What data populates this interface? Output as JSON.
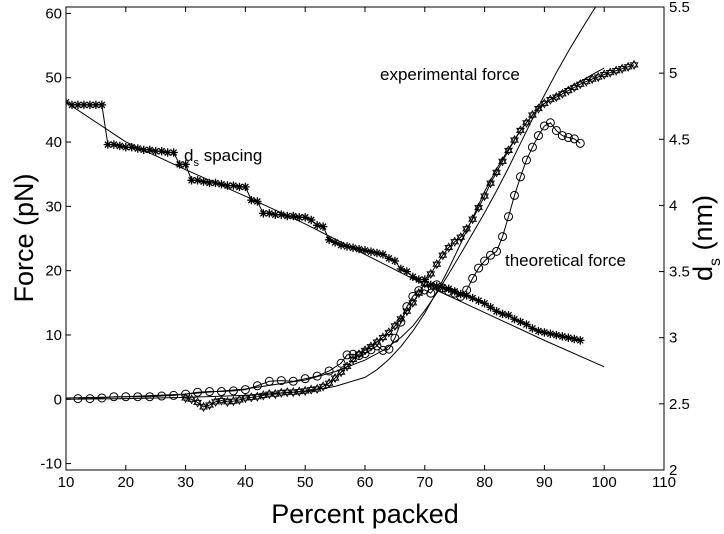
{
  "chart_data": {
    "type": "line",
    "title": "",
    "xlabel": "Percent packed",
    "ylabel": "Force (pN)",
    "y2label": "d",
    "y2label_sub": "s",
    "y2label_unit": " (nm)",
    "xlim": [
      10,
      110
    ],
    "ylim": [
      -11,
      61
    ],
    "y2lim": [
      2.0,
      5.5
    ],
    "xticks": [
      "10",
      "20",
      "30",
      "40",
      "50",
      "60",
      "70",
      "80",
      "90",
      "100",
      "110"
    ],
    "yticks": [
      "-10",
      "0",
      "10",
      "20",
      "30",
      "40",
      "50",
      "60"
    ],
    "y2ticks": [
      "2",
      "2.5",
      "3",
      "3.5",
      "4",
      "4.5",
      "5",
      "5.5"
    ],
    "grid": false,
    "colors": {
      "line": "#000000",
      "background": "#ffffff"
    },
    "annotations": [
      {
        "text": "experimental force",
        "at": [
          82,
          52
        ]
      },
      {
        "text": "theoretical force",
        "at": [
          86,
          20
        ]
      },
      {
        "text": "d",
        "sub": "s",
        "tail": " spacing",
        "at": [
          41,
          39.5
        ]
      }
    ],
    "series": [
      {
        "name": "experimental force",
        "axis": "left",
        "marker": "star-of-david",
        "x": [
          30,
          31,
          32,
          33,
          34,
          35,
          36,
          37,
          38,
          39,
          40,
          41,
          42,
          43,
          44,
          45,
          46,
          47,
          48,
          49,
          50,
          51,
          52,
          53,
          54,
          55,
          56,
          57,
          58,
          59,
          60,
          61,
          62,
          63,
          64,
          65,
          66,
          67,
          68,
          69,
          70,
          71,
          72,
          73,
          74,
          75,
          76,
          77,
          78,
          79,
          80,
          81,
          82,
          83,
          84,
          85,
          86,
          87,
          88,
          89,
          90,
          91,
          92,
          93,
          94,
          95,
          96,
          97,
          98,
          99,
          100,
          101,
          102,
          103,
          104,
          105
        ],
        "y": [
          0.2,
          0.0,
          -0.5,
          -1.2,
          -0.9,
          -0.4,
          -0.2,
          -0.4,
          -0.3,
          -0.1,
          0.2,
          0.3,
          0.4,
          0.6,
          0.8,
          0.8,
          1.0,
          1.1,
          1.1,
          1.2,
          1.3,
          1.5,
          1.6,
          2.0,
          2.5,
          3.3,
          4.2,
          5.1,
          6.2,
          7.0,
          7.6,
          8.2,
          8.9,
          9.6,
          10.4,
          11.4,
          12.5,
          13.7,
          15.0,
          16.5,
          18.0,
          19.5,
          21.0,
          22.4,
          23.6,
          24.5,
          25.2,
          26.5,
          28.0,
          29.8,
          31.6,
          33.6,
          35.3,
          37.0,
          38.7,
          40.3,
          41.8,
          43.0,
          44.2,
          45.2,
          46.0,
          46.6,
          47.0,
          47.5,
          48.0,
          48.5,
          49.0,
          49.4,
          49.8,
          50.1,
          50.5,
          50.8,
          51.1,
          51.4,
          51.7,
          52.0
        ]
      },
      {
        "name": "theoretical force",
        "axis": "left",
        "marker": "circle",
        "x": [
          12,
          14,
          16,
          18,
          20,
          22,
          24,
          26,
          28,
          30,
          32,
          34,
          36,
          38,
          40,
          42,
          44,
          46,
          48,
          50,
          52,
          54,
          56,
          57,
          58,
          59,
          60,
          61,
          62,
          63,
          64,
          65,
          66,
          67,
          68,
          69,
          70,
          71,
          72,
          73,
          74,
          75,
          76,
          77,
          78,
          79,
          80,
          81,
          82,
          83,
          84,
          85,
          86,
          87,
          88,
          89,
          90,
          91,
          92,
          93,
          94,
          95,
          96
        ],
        "y": [
          0.1,
          0.1,
          0.2,
          0.4,
          0.4,
          0.4,
          0.4,
          0.5,
          0.6,
          0.8,
          1.1,
          1.2,
          1.2,
          1.3,
          1.5,
          2.1,
          2.8,
          2.9,
          2.8,
          3.2,
          3.6,
          4.4,
          5.6,
          6.9,
          7.0,
          6.8,
          7.1,
          7.7,
          8.3,
          7.6,
          7.8,
          9.5,
          12.0,
          14.4,
          16.0,
          16.9,
          17.0,
          16.5,
          17.8,
          17.3,
          16.8,
          16.5,
          16.0,
          17.0,
          18.8,
          20.4,
          21.5,
          22.4,
          23.0,
          25.3,
          28.4,
          31.7,
          34.6,
          37.2,
          39.2,
          41.0,
          42.5,
          43.0,
          41.8,
          41.0,
          40.7,
          40.5,
          39.8
        ]
      },
      {
        "name": "experimental force fit",
        "axis": "left",
        "marker": "none",
        "x": [
          10,
          20,
          30,
          40,
          50,
          55,
          60,
          62,
          64,
          66,
          68,
          70,
          72,
          74,
          76,
          78,
          80,
          82,
          84,
          86,
          88,
          90,
          92,
          94,
          96,
          98,
          100
        ],
        "y": [
          0.0,
          0.1,
          0.3,
          0.6,
          1.2,
          2.0,
          3.4,
          4.6,
          6.2,
          8.2,
          10.6,
          13.4,
          16.7,
          20.3,
          24.2,
          28.2,
          32.3,
          35.8,
          38.9,
          41.8,
          44.2,
          46.0,
          47.3,
          48.4,
          49.4,
          50.5,
          51.5
        ]
      },
      {
        "name": "theoretical force fit",
        "axis": "left",
        "marker": "none",
        "x": [
          10,
          20,
          30,
          40,
          50,
          55,
          60,
          63,
          66,
          68,
          70,
          72,
          74,
          76,
          78,
          80,
          82,
          84,
          86,
          88,
          90,
          92,
          94,
          96,
          98,
          100
        ],
        "y": [
          0.2,
          0.4,
          0.8,
          1.6,
          3.0,
          4.3,
          6.1,
          7.6,
          9.6,
          11.4,
          13.8,
          16.5,
          19.5,
          22.6,
          25.8,
          29.0,
          32.4,
          36.0,
          39.8,
          43.6,
          47.3,
          50.8,
          54.1,
          57.2,
          60.2,
          63.0
        ]
      },
      {
        "name": "ds spacing",
        "axis": "right",
        "marker": "asterisk",
        "x": [
          10,
          11,
          12,
          13,
          14,
          15,
          16,
          17,
          18,
          19,
          20,
          21,
          22,
          23,
          24,
          25,
          26,
          27,
          28,
          29,
          30,
          31,
          32,
          33,
          34,
          35,
          36,
          37,
          38,
          39,
          40,
          41,
          42,
          43,
          44,
          45,
          46,
          47,
          48,
          49,
          50,
          51,
          52,
          53,
          54,
          55,
          56,
          57,
          58,
          59,
          60,
          61,
          62,
          63,
          64,
          65,
          66,
          67,
          68,
          69,
          70,
          71,
          72,
          73,
          74,
          75,
          76,
          77,
          78,
          79,
          80,
          81,
          82,
          83,
          84,
          85,
          86,
          87,
          88,
          89,
          90,
          91,
          92,
          93,
          94,
          95,
          96
        ],
        "y": [
          4.78,
          4.76,
          4.76,
          4.76,
          4.76,
          4.76,
          4.76,
          4.46,
          4.46,
          4.45,
          4.44,
          4.44,
          4.43,
          4.42,
          4.42,
          4.41,
          4.41,
          4.4,
          4.4,
          4.31,
          4.31,
          4.19,
          4.19,
          4.18,
          4.17,
          4.17,
          4.16,
          4.15,
          4.15,
          4.14,
          4.14,
          4.04,
          4.03,
          3.94,
          3.94,
          3.93,
          3.93,
          3.92,
          3.92,
          3.91,
          3.91,
          3.89,
          3.85,
          3.84,
          3.74,
          3.72,
          3.7,
          3.69,
          3.68,
          3.67,
          3.66,
          3.65,
          3.64,
          3.63,
          3.6,
          3.58,
          3.52,
          3.5,
          3.46,
          3.44,
          3.44,
          3.4,
          3.39,
          3.38,
          3.37,
          3.35,
          3.33,
          3.32,
          3.3,
          3.28,
          3.26,
          3.23,
          3.2,
          3.18,
          3.17,
          3.14,
          3.12,
          3.1,
          3.07,
          3.05,
          3.04,
          3.03,
          3.02,
          3.01,
          3.0,
          2.99,
          2.98
        ]
      },
      {
        "name": "ds spacing fit",
        "axis": "right",
        "marker": "none",
        "x": [
          10,
          20,
          30,
          40,
          50,
          60,
          70,
          80,
          90,
          100
        ],
        "y": [
          4.78,
          4.48,
          4.27,
          4.07,
          3.86,
          3.63,
          3.4,
          3.19,
          2.98,
          2.78
        ]
      }
    ]
  }
}
